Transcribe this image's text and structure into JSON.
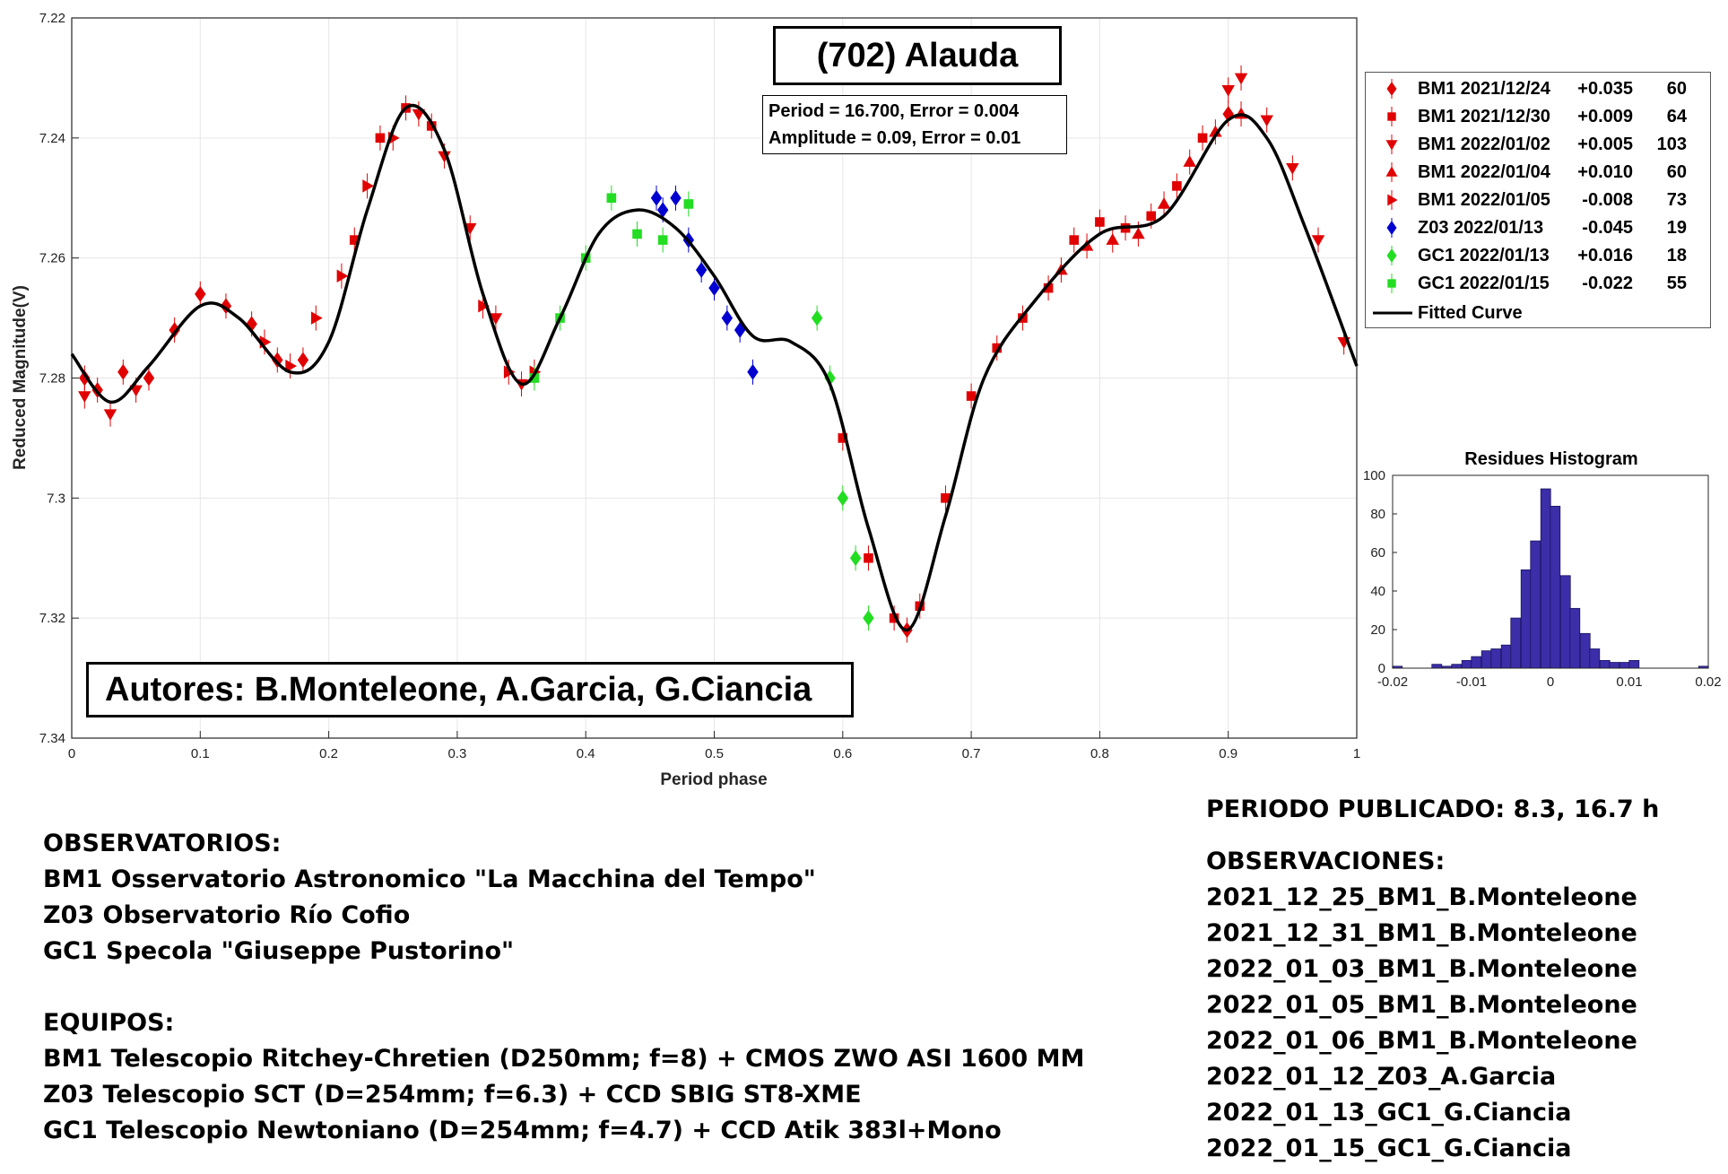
{
  "chart_data": [
    {
      "type": "scatter",
      "title": "(702) Alauda",
      "xlabel": "Period phase",
      "ylabel": "Reduced Magnitude(V)",
      "xlim": [
        0,
        1
      ],
      "ylim": [
        7.22,
        7.34
      ],
      "y_inverted": true,
      "grid": true,
      "legend_position": "top-right",
      "x_ticks": [
        "0",
        "0.1",
        "0.2",
        "0.3",
        "0.4",
        "0.5",
        "0.6",
        "0.7",
        "0.8",
        "0.9",
        "1"
      ],
      "y_ticks": [
        "7.22",
        "7.24",
        "7.26",
        "7.28",
        "7.3",
        "7.32",
        "7.34"
      ],
      "period_info": {
        "line1": "Period =  16.700, Error = 0.004",
        "line2": "Amplitude = 0.09, Error = 0.01"
      },
      "series": [
        {
          "name": "BM1 2021/12/24",
          "offset": "+0.035",
          "count": "60",
          "color": "#e00000",
          "marker": "diamond"
        },
        {
          "name": "BM1 2021/12/30",
          "offset": "+0.009",
          "count": "64",
          "color": "#e00000",
          "marker": "square"
        },
        {
          "name": "BM1 2022/01/02",
          "offset": "+0.005",
          "count": "103",
          "color": "#e00000",
          "marker": "triangle-down"
        },
        {
          "name": "BM1 2022/01/04",
          "offset": "+0.010",
          "count": "60",
          "color": "#e00000",
          "marker": "triangle-up"
        },
        {
          "name": "BM1 2022/01/05",
          "offset": "-0.008",
          "count": "73",
          "color": "#e00000",
          "marker": "triangle-right"
        },
        {
          "name": "Z03 2022/01/13",
          "offset": "-0.045",
          "count": "19",
          "color": "#0000d0",
          "marker": "diamond"
        },
        {
          "name": "GC1 2022/01/13",
          "offset": "+0.016",
          "count": "18",
          "color": "#22dd22",
          "marker": "diamond"
        },
        {
          "name": "GC1 2022/01/15",
          "offset": "-0.022",
          "count": "55",
          "color": "#22dd22",
          "marker": "square"
        }
      ],
      "fitted_curve": {
        "name": "Fitted Curve",
        "color": "#000000",
        "x": [
          0,
          0.03,
          0.06,
          0.1,
          0.13,
          0.17,
          0.2,
          0.23,
          0.26,
          0.29,
          0.32,
          0.35,
          0.38,
          0.41,
          0.44,
          0.47,
          0.5,
          0.53,
          0.56,
          0.59,
          0.62,
          0.65,
          0.68,
          0.71,
          0.75,
          0.8,
          0.85,
          0.9,
          0.93,
          0.96,
          1
        ],
        "y": [
          7.276,
          7.284,
          7.278,
          7.268,
          7.27,
          7.279,
          7.274,
          7.252,
          7.235,
          7.242,
          7.266,
          7.281,
          7.27,
          7.256,
          7.252,
          7.255,
          7.263,
          7.273,
          7.274,
          7.281,
          7.305,
          7.322,
          7.303,
          7.28,
          7.267,
          7.256,
          7.253,
          7.237,
          7.24,
          7.255,
          7.278
        ]
      },
      "points": {
        "BM1 2021/12/24": {
          "x": [
            0.01,
            0.02,
            0.04,
            0.06,
            0.08,
            0.1,
            0.12,
            0.14,
            0.16,
            0.18,
            0.65,
            0.9
          ],
          "y": [
            7.28,
            7.282,
            7.279,
            7.28,
            7.272,
            7.266,
            7.268,
            7.271,
            7.277,
            7.277,
            7.322,
            7.236
          ]
        },
        "BM1 2021/12/30": {
          "x": [
            0.22,
            0.24,
            0.26,
            0.28,
            0.6,
            0.62,
            0.64,
            0.66,
            0.68,
            0.7,
            0.72,
            0.74,
            0.76,
            0.78,
            0.8,
            0.82,
            0.84,
            0.86,
            0.88
          ],
          "y": [
            7.257,
            7.24,
            7.235,
            7.238,
            7.29,
            7.31,
            7.32,
            7.318,
            7.3,
            7.283,
            7.275,
            7.27,
            7.265,
            7.257,
            7.254,
            7.255,
            7.253,
            7.248,
            7.24
          ]
        },
        "BM1 2022/01/02": {
          "x": [
            0.01,
            0.03,
            0.05,
            0.27,
            0.29,
            0.31,
            0.33,
            0.35,
            0.9,
            0.91,
            0.93,
            0.95,
            0.97,
            0.99
          ],
          "y": [
            7.283,
            7.286,
            7.282,
            7.236,
            7.243,
            7.255,
            7.27,
            7.281,
            7.232,
            7.23,
            7.237,
            7.245,
            7.257,
            7.274
          ]
        },
        "BM1 2022/01/04": {
          "x": [
            0.77,
            0.79,
            0.81,
            0.83,
            0.85,
            0.87,
            0.89,
            0.91
          ],
          "y": [
            7.262,
            7.258,
            7.257,
            7.256,
            7.251,
            7.244,
            7.239,
            7.236
          ]
        },
        "BM1 2022/01/05": {
          "x": [
            0.15,
            0.17,
            0.19,
            0.21,
            0.23,
            0.25,
            0.32,
            0.34,
            0.36
          ],
          "y": [
            7.274,
            7.278,
            7.27,
            7.263,
            7.248,
            7.24,
            7.268,
            7.279,
            7.279
          ]
        },
        "Z03 2022/01/13": {
          "x": [
            0.455,
            0.46,
            0.47,
            0.48,
            0.49,
            0.5,
            0.51,
            0.52,
            0.53
          ],
          "y": [
            7.25,
            7.252,
            7.25,
            7.257,
            7.262,
            7.265,
            7.27,
            7.272,
            7.279
          ]
        },
        "GC1 2022/01/13": {
          "x": [
            0.58,
            0.59,
            0.6,
            0.61,
            0.62
          ],
          "y": [
            7.27,
            7.28,
            7.3,
            7.31,
            7.32
          ]
        },
        "GC1 2022/01/15": {
          "x": [
            0.36,
            0.38,
            0.4,
            0.42,
            0.44,
            0.46,
            0.48
          ],
          "y": [
            7.28,
            7.27,
            7.26,
            7.25,
            7.256,
            7.257,
            7.251
          ]
        }
      }
    },
    {
      "type": "bar",
      "title": "Residues Histogram",
      "xlim": [
        -0.02,
        0.02
      ],
      "ylim": [
        0,
        100
      ],
      "x_ticks": [
        "-0.02",
        "-0.01",
        "0",
        "0.01",
        "0.02"
      ],
      "y_ticks": [
        "0",
        "20",
        "40",
        "60",
        "80",
        "100"
      ],
      "color": "#3b2ea8",
      "bin_width": 0.00125,
      "bin_centers": [
        -0.0194,
        -0.0181,
        -0.0169,
        -0.0156,
        -0.0144,
        -0.0131,
        -0.0119,
        -0.0106,
        -0.0094,
        -0.0081,
        -0.0069,
        -0.0056,
        -0.0044,
        -0.0031,
        -0.0019,
        -0.0006,
        0.0006,
        0.0019,
        0.0031,
        0.0044,
        0.0056,
        0.0069,
        0.0081,
        0.0094,
        0.0106,
        0.0119,
        0.0131,
        0.0144,
        0.0156,
        0.0169,
        0.0181,
        0.0194
      ],
      "values": [
        1,
        0,
        0,
        0,
        2,
        1,
        2,
        4,
        6,
        9,
        10,
        12,
        26,
        51,
        66,
        93,
        84,
        48,
        31,
        18,
        10,
        4,
        3,
        3,
        4,
        0,
        0,
        0,
        0,
        0,
        0,
        1
      ]
    }
  ],
  "authors": "Autores: B.Monteleone, A.Garcia, G.Ciancia",
  "observatorios": {
    "heading": "OBSERVATORIOS:",
    "items": [
      "BM1 Osservatorio Astronomico \"La Macchina del Tempo\"",
      "Z03 Observatorio Río Cofio",
      "GC1 Specola \"Giuseppe Pustorino\""
    ]
  },
  "equipos": {
    "heading": "EQUIPOS:",
    "items": [
      "BM1 Telescopio Ritchey-Chretien (D250mm; f=8) + CMOS ZWO ASI 1600 MM",
      "Z03 Telescopio SCT (D=254mm; f=6.3) + CCD SBIG ST8-XME",
      "GC1 Telescopio Newtoniano (D=254mm; f=4.7) + CCD Atik 383l+Mono"
    ]
  },
  "periodo_publicado": "PERIODO PUBLICADO: 8.3, 16.7 h",
  "observaciones": {
    "heading": "OBSERVACIONES:",
    "items": [
      "2021_12_25_BM1_B.Monteleone",
      "2021_12_31_BM1_B.Monteleone",
      "2022_01_03_BM1_B.Monteleone",
      "2022_01_05_BM1_B.Monteleone",
      "2022_01_06_BM1_B.Monteleone",
      "2022_01_12_Z03_A.Garcia",
      "2022_01_13_GC1_G.Ciancia",
      "2022_01_15_GC1_G.Ciancia"
    ]
  }
}
